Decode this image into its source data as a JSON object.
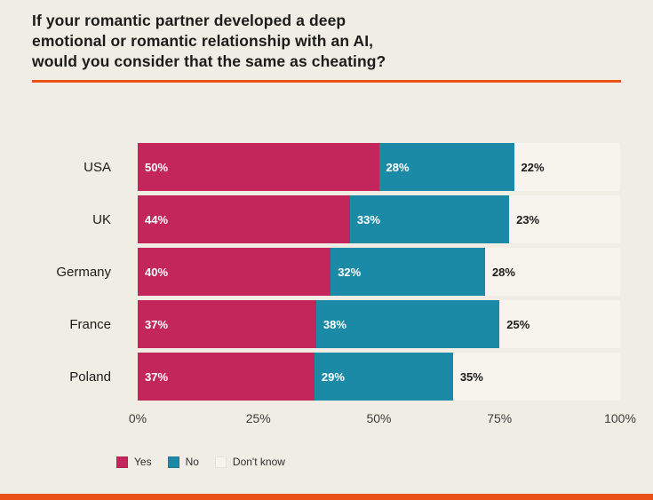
{
  "title": "If your romantic partner developed a deep emotional or romantic relationship with an AI, would you consider that the same as cheating?",
  "title_lines": [
    "If your romantic partner developed a deep",
    "emotional or romantic relationship with an AI,",
    "would you consider that the same as cheating?"
  ],
  "colors": {
    "background": "#f0ede5",
    "accent_orange": "#e95117",
    "yes": "#c2265a",
    "no": "#1b8aa6",
    "dont_know": "#f6f4ed",
    "title_text": "#1c1c1a",
    "axis_text": "#3c3c3a"
  },
  "chart_data": {
    "type": "bar",
    "orientation": "horizontal",
    "stacked": true,
    "categories": [
      "USA",
      "UK",
      "Germany",
      "France",
      "Poland"
    ],
    "series": [
      {
        "name": "Yes",
        "color": "#c2265a",
        "label_color": "#ffffff",
        "values": [
          50,
          44,
          40,
          37,
          37
        ]
      },
      {
        "name": "No",
        "color": "#1b8aa6",
        "label_color": "#ffffff",
        "values": [
          28,
          33,
          32,
          38,
          29
        ]
      },
      {
        "name": "Don't know",
        "color": "#f6f4ed",
        "label_color": "#1c1c1a",
        "values": [
          22,
          23,
          28,
          25,
          35
        ]
      }
    ],
    "value_suffix": "%",
    "xlim": [
      0,
      100
    ],
    "xticks": [
      "0%",
      "25%",
      "50%",
      "75%",
      "100%"
    ],
    "legend_position": "bottom-left",
    "grid": false
  }
}
